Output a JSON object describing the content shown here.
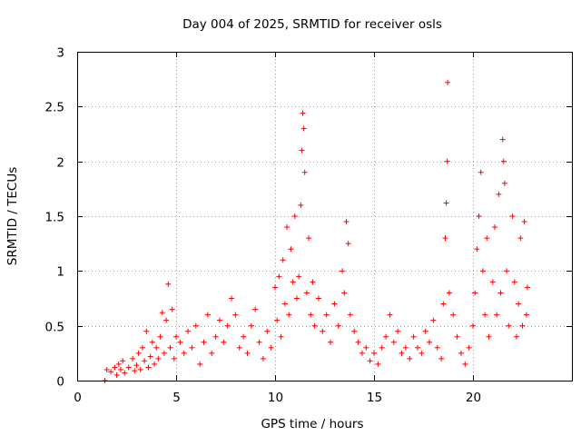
{
  "chart_data": {
    "type": "scatter",
    "title": "Day 004 of 2025, SRMTID for receiver osls",
    "xlabel": "GPS time / hours",
    "ylabel": "SRMTID / TECUs",
    "xlim": [
      0,
      25
    ],
    "ylim": [
      0,
      3
    ],
    "x_ticks": [
      0,
      5,
      10,
      15,
      20
    ],
    "x_tick_labels": [
      "0",
      "5",
      "10",
      "15",
      "20"
    ],
    "y_ticks": [
      0,
      0.5,
      1,
      1.5,
      2,
      2.5,
      3
    ],
    "y_tick_labels": [
      "0",
      "0.5",
      "1",
      "1.5",
      "2",
      "2.5",
      "3"
    ],
    "grid": true,
    "marker": "+",
    "color": "#ff0000",
    "series": [
      {
        "name": "SRMTID",
        "points": [
          [
            1.4,
            0.0
          ],
          [
            1.5,
            0.1
          ],
          [
            1.7,
            0.08
          ],
          [
            1.9,
            0.12
          ],
          [
            2.0,
            0.05
          ],
          [
            2.1,
            0.15
          ],
          [
            2.2,
            0.1
          ],
          [
            2.3,
            0.18
          ],
          [
            2.4,
            0.07
          ],
          [
            2.6,
            0.12
          ],
          [
            2.8,
            0.2
          ],
          [
            2.9,
            0.09
          ],
          [
            3.0,
            0.14
          ],
          [
            3.1,
            0.25
          ],
          [
            3.2,
            0.1
          ],
          [
            3.3,
            0.3
          ],
          [
            3.4,
            0.18
          ],
          [
            3.5,
            0.45
          ],
          [
            3.6,
            0.12
          ],
          [
            3.7,
            0.22
          ],
          [
            3.8,
            0.35
          ],
          [
            3.9,
            0.15
          ],
          [
            4.0,
            0.3
          ],
          [
            4.1,
            0.2
          ],
          [
            4.2,
            0.4
          ],
          [
            4.3,
            0.62
          ],
          [
            4.4,
            0.25
          ],
          [
            4.5,
            0.55
          ],
          [
            4.6,
            0.88
          ],
          [
            4.7,
            0.3
          ],
          [
            4.8,
            0.65
          ],
          [
            4.9,
            0.2
          ],
          [
            5.0,
            0.4
          ],
          [
            5.2,
            0.35
          ],
          [
            5.4,
            0.25
          ],
          [
            5.6,
            0.45
          ],
          [
            5.8,
            0.3
          ],
          [
            6.0,
            0.5
          ],
          [
            6.2,
            0.15
          ],
          [
            6.4,
            0.35
          ],
          [
            6.6,
            0.6
          ],
          [
            6.8,
            0.25
          ],
          [
            7.0,
            0.4
          ],
          [
            7.2,
            0.55
          ],
          [
            7.4,
            0.35
          ],
          [
            7.6,
            0.5
          ],
          [
            7.8,
            0.75
          ],
          [
            8.0,
            0.6
          ],
          [
            8.2,
            0.3
          ],
          [
            8.4,
            0.4
          ],
          [
            8.6,
            0.25
          ],
          [
            8.8,
            0.5
          ],
          [
            9.0,
            0.65
          ],
          [
            9.2,
            0.35
          ],
          [
            9.4,
            0.2
          ],
          [
            9.6,
            0.45
          ],
          [
            9.8,
            0.3
          ],
          [
            10.0,
            0.85
          ],
          [
            10.1,
            0.55
          ],
          [
            10.2,
            0.95
          ],
          [
            10.3,
            0.4
          ],
          [
            10.4,
            1.1
          ],
          [
            10.5,
            0.7
          ],
          [
            10.6,
            1.4
          ],
          [
            10.7,
            0.6
          ],
          [
            10.8,
            1.2
          ],
          [
            10.9,
            0.9
          ],
          [
            11.0,
            1.5
          ],
          [
            11.1,
            0.75
          ],
          [
            11.2,
            0.95
          ],
          [
            11.3,
            1.6
          ],
          [
            11.35,
            2.1
          ],
          [
            11.4,
            2.44
          ],
          [
            11.45,
            2.3
          ],
          [
            11.5,
            1.9
          ],
          [
            11.6,
            0.8
          ],
          [
            11.7,
            1.3
          ],
          [
            11.8,
            0.6
          ],
          [
            11.9,
            0.9
          ],
          [
            12.0,
            0.5
          ],
          [
            12.2,
            0.75
          ],
          [
            12.4,
            0.45
          ],
          [
            12.6,
            0.6
          ],
          [
            12.8,
            0.35
          ],
          [
            13.0,
            0.7
          ],
          [
            13.2,
            0.5
          ],
          [
            13.4,
            1.0
          ],
          [
            13.5,
            0.8
          ],
          [
            13.6,
            1.45
          ],
          [
            13.7,
            1.25
          ],
          [
            13.8,
            0.6
          ],
          [
            14.0,
            0.45
          ],
          [
            14.2,
            0.35
          ],
          [
            14.4,
            0.25
          ],
          [
            14.6,
            0.3
          ],
          [
            14.8,
            0.18
          ],
          [
            15.0,
            0.25
          ],
          [
            15.2,
            0.15
          ],
          [
            15.4,
            0.3
          ],
          [
            15.6,
            0.4
          ],
          [
            15.8,
            0.6
          ],
          [
            16.0,
            0.35
          ],
          [
            16.2,
            0.45
          ],
          [
            16.4,
            0.25
          ],
          [
            16.6,
            0.3
          ],
          [
            16.8,
            0.2
          ],
          [
            17.0,
            0.4
          ],
          [
            17.2,
            0.3
          ],
          [
            17.4,
            0.25
          ],
          [
            17.6,
            0.45
          ],
          [
            17.8,
            0.35
          ],
          [
            18.0,
            0.55
          ],
          [
            18.2,
            0.3
          ],
          [
            18.4,
            0.2
          ],
          [
            18.5,
            0.7
          ],
          [
            18.6,
            1.3
          ],
          [
            18.65,
            1.62
          ],
          [
            18.7,
            2.0
          ],
          [
            18.72,
            2.72
          ],
          [
            18.8,
            0.8
          ],
          [
            19.0,
            0.6
          ],
          [
            19.2,
            0.4
          ],
          [
            19.4,
            0.25
          ],
          [
            19.6,
            0.15
          ],
          [
            19.8,
            0.3
          ],
          [
            20.0,
            0.5
          ],
          [
            20.1,
            0.8
          ],
          [
            20.2,
            1.2
          ],
          [
            20.3,
            1.5
          ],
          [
            20.4,
            1.9
          ],
          [
            20.5,
            1.0
          ],
          [
            20.6,
            0.6
          ],
          [
            20.7,
            1.3
          ],
          [
            20.8,
            0.4
          ],
          [
            21.0,
            0.9
          ],
          [
            21.1,
            1.4
          ],
          [
            21.2,
            0.6
          ],
          [
            21.3,
            1.7
          ],
          [
            21.4,
            0.8
          ],
          [
            21.5,
            2.2
          ],
          [
            21.55,
            2.0
          ],
          [
            21.6,
            1.8
          ],
          [
            21.7,
            1.0
          ],
          [
            21.8,
            0.5
          ],
          [
            22.0,
            1.5
          ],
          [
            22.1,
            0.9
          ],
          [
            22.2,
            0.4
          ],
          [
            22.3,
            0.7
          ],
          [
            22.4,
            1.3
          ],
          [
            22.5,
            0.5
          ],
          [
            22.6,
            1.45
          ],
          [
            22.7,
            0.6
          ],
          [
            22.75,
            0.85
          ]
        ]
      }
    ]
  }
}
